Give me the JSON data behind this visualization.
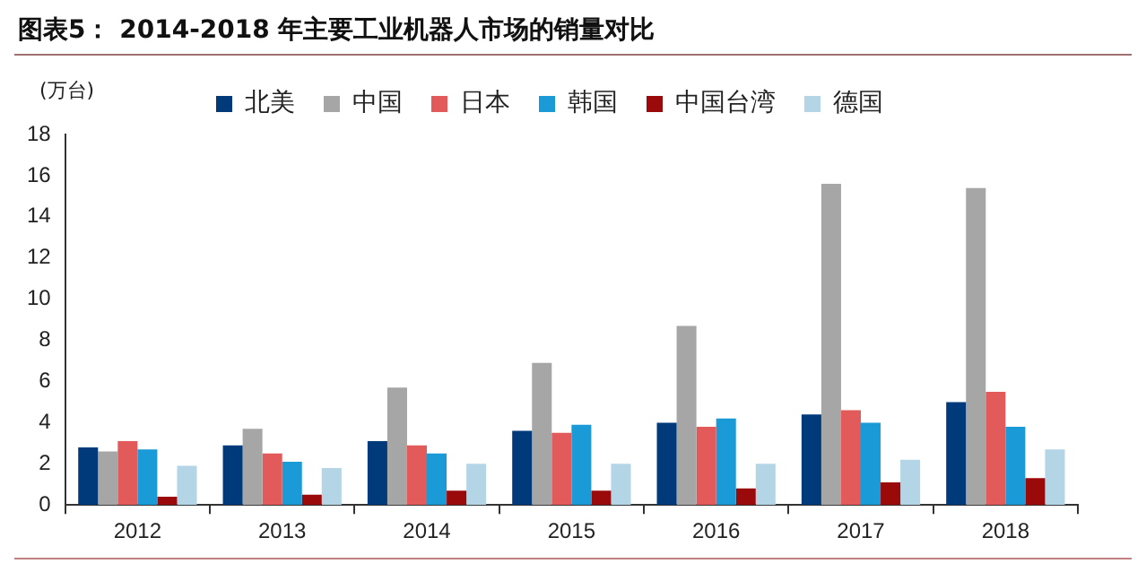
{
  "chart_data": {
    "type": "bar",
    "title": "图表5：  2014-2018 年主要工业机器人市场的销量对比",
    "ylabel": "(万台)",
    "categories": [
      "2012",
      "2013",
      "2014",
      "2015",
      "2016",
      "2017",
      "2018"
    ],
    "series": [
      {
        "name": "北美",
        "color": "#003a7a",
        "values": [
          2.8,
          2.9,
          3.1,
          3.6,
          4.0,
          4.4,
          5.0
        ]
      },
      {
        "name": "中国",
        "color": "#a6a6a6",
        "values": [
          2.6,
          3.7,
          5.7,
          6.9,
          8.7,
          15.6,
          15.4
        ]
      },
      {
        "name": "日本",
        "color": "#e35a5a",
        "values": [
          3.1,
          2.5,
          2.9,
          3.5,
          3.8,
          4.6,
          5.5
        ]
      },
      {
        "name": "韩国",
        "color": "#1a9ad6",
        "values": [
          2.7,
          2.1,
          2.5,
          3.9,
          4.2,
          4.0,
          3.8
        ]
      },
      {
        "name": "中国台湾",
        "color": "#9b0a0a",
        "values": [
          0.4,
          0.5,
          0.7,
          0.7,
          0.8,
          1.1,
          1.3
        ]
      },
      {
        "name": "德国",
        "color": "#b3d5e6",
        "values": [
          1.9,
          1.8,
          2.0,
          2.0,
          2.0,
          2.2,
          2.7
        ]
      }
    ],
    "ylim": [
      0,
      18
    ],
    "yticks": [
      0,
      2,
      4,
      6,
      8,
      10,
      12,
      14,
      16,
      18
    ],
    "grid": false,
    "legend": "top"
  }
}
